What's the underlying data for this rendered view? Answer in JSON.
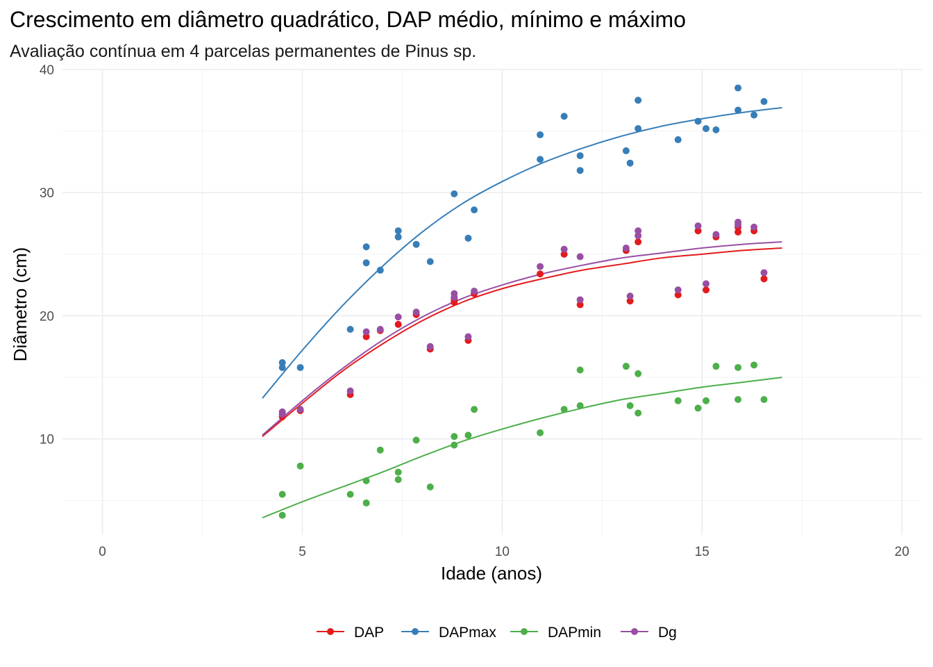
{
  "chart_data": {
    "type": "scatter",
    "title": "Crescimento em diâmetro quadrático, DAP médio, mínimo e máximo",
    "subtitle": "Avaliação contínua em 4 parcelas permanentes de Pinus sp.",
    "xlabel": "Idade (anos)",
    "ylabel": "Diâmetro (cm)",
    "xlim": [
      -1,
      20.5
    ],
    "ylim": [
      2.2,
      40
    ],
    "xticks": [
      0,
      5,
      10,
      15,
      20
    ],
    "yticks": [
      10,
      20,
      30,
      40
    ],
    "grid": true,
    "legend_position": "bottom",
    "trend_lines": "smoothed fit per series",
    "series": [
      {
        "name": "DAP",
        "color": "#E41A1C",
        "points": [
          [
            4.5,
            11.8
          ],
          [
            4.5,
            12.0
          ],
          [
            4.95,
            12.3
          ],
          [
            6.2,
            13.6
          ],
          [
            6.6,
            18.3
          ],
          [
            6.95,
            18.8
          ],
          [
            7.4,
            19.3
          ],
          [
            7.85,
            20.1
          ],
          [
            8.2,
            17.3
          ],
          [
            8.8,
            21.3
          ],
          [
            8.8,
            21.1
          ],
          [
            9.15,
            18.0
          ],
          [
            9.3,
            21.8
          ],
          [
            10.95,
            23.4
          ],
          [
            11.55,
            25.0
          ],
          [
            11.95,
            20.9
          ],
          [
            13.1,
            25.3
          ],
          [
            13.2,
            21.2
          ],
          [
            13.4,
            26.0
          ],
          [
            14.4,
            21.7
          ],
          [
            14.9,
            26.9
          ],
          [
            15.1,
            22.1
          ],
          [
            15.35,
            26.4
          ],
          [
            15.9,
            27.2
          ],
          [
            15.9,
            26.8
          ],
          [
            16.3,
            26.9
          ],
          [
            16.55,
            23.0
          ]
        ],
        "fit": [
          [
            4,
            10.2
          ],
          [
            5,
            12.9
          ],
          [
            6,
            15.5
          ],
          [
            7,
            17.7
          ],
          [
            8,
            19.6
          ],
          [
            9,
            21.1
          ],
          [
            10,
            22.2
          ],
          [
            11,
            23.0
          ],
          [
            12,
            23.7
          ],
          [
            13,
            24.2
          ],
          [
            14,
            24.7
          ],
          [
            15,
            25.0
          ],
          [
            16,
            25.3
          ],
          [
            17,
            25.5
          ]
        ]
      },
      {
        "name": "DAPmax",
        "color": "#377EB8",
        "points": [
          [
            4.5,
            16.2
          ],
          [
            4.5,
            15.8
          ],
          [
            4.95,
            15.8
          ],
          [
            6.2,
            18.9
          ],
          [
            6.6,
            25.6
          ],
          [
            6.6,
            24.3
          ],
          [
            6.95,
            23.7
          ],
          [
            7.4,
            26.9
          ],
          [
            7.4,
            26.4
          ],
          [
            7.85,
            25.8
          ],
          [
            8.2,
            24.4
          ],
          [
            8.8,
            29.9
          ],
          [
            9.15,
            26.3
          ],
          [
            9.3,
            28.6
          ],
          [
            10.95,
            34.7
          ],
          [
            10.95,
            32.7
          ],
          [
            11.55,
            36.2
          ],
          [
            11.95,
            33.0
          ],
          [
            11.95,
            31.8
          ],
          [
            13.1,
            33.4
          ],
          [
            13.2,
            32.4
          ],
          [
            13.4,
            37.5
          ],
          [
            13.4,
            35.2
          ],
          [
            14.4,
            34.3
          ],
          [
            14.9,
            35.8
          ],
          [
            15.1,
            35.2
          ],
          [
            15.35,
            35.1
          ],
          [
            15.9,
            38.5
          ],
          [
            15.9,
            36.7
          ],
          [
            16.3,
            36.3
          ],
          [
            16.55,
            37.4
          ]
        ],
        "fit": [
          [
            4,
            13.3
          ],
          [
            5,
            17.2
          ],
          [
            6,
            20.8
          ],
          [
            7,
            24.0
          ],
          [
            8,
            26.8
          ],
          [
            9,
            29.1
          ],
          [
            10,
            30.9
          ],
          [
            11,
            32.4
          ],
          [
            12,
            33.6
          ],
          [
            13,
            34.6
          ],
          [
            14,
            35.4
          ],
          [
            15,
            36.0
          ],
          [
            16,
            36.5
          ],
          [
            17,
            36.9
          ]
        ]
      },
      {
        "name": "DAPmin",
        "color": "#4DAF4A",
        "points": [
          [
            4.5,
            5.5
          ],
          [
            4.5,
            3.8
          ],
          [
            4.95,
            7.8
          ],
          [
            6.2,
            5.5
          ],
          [
            6.6,
            6.6
          ],
          [
            6.6,
            4.8
          ],
          [
            6.95,
            9.1
          ],
          [
            7.4,
            7.3
          ],
          [
            7.4,
            6.7
          ],
          [
            7.85,
            9.9
          ],
          [
            8.2,
            6.1
          ],
          [
            8.8,
            10.2
          ],
          [
            8.8,
            9.5
          ],
          [
            9.15,
            10.3
          ],
          [
            9.3,
            12.4
          ],
          [
            10.95,
            10.5
          ],
          [
            11.55,
            12.4
          ],
          [
            11.95,
            15.6
          ],
          [
            11.95,
            12.7
          ],
          [
            13.1,
            15.9
          ],
          [
            13.2,
            12.7
          ],
          [
            13.4,
            15.3
          ],
          [
            13.4,
            12.1
          ],
          [
            14.4,
            13.1
          ],
          [
            14.9,
            12.5
          ],
          [
            15.1,
            13.1
          ],
          [
            15.35,
            15.9
          ],
          [
            15.9,
            15.8
          ],
          [
            15.9,
            13.2
          ],
          [
            16.3,
            16.0
          ],
          [
            16.55,
            13.2
          ]
        ],
        "fit": [
          [
            4,
            3.6
          ],
          [
            5,
            4.9
          ],
          [
            6,
            6.1
          ],
          [
            7,
            7.3
          ],
          [
            8,
            8.6
          ],
          [
            9,
            9.8
          ],
          [
            10,
            10.8
          ],
          [
            11,
            11.7
          ],
          [
            12,
            12.5
          ],
          [
            13,
            13.2
          ],
          [
            14,
            13.7
          ],
          [
            15,
            14.2
          ],
          [
            16,
            14.6
          ],
          [
            17,
            15.0
          ]
        ]
      },
      {
        "name": "Dg",
        "color": "#984EA3",
        "points": [
          [
            4.5,
            12.2
          ],
          [
            4.5,
            12.0
          ],
          [
            4.95,
            12.4
          ],
          [
            6.2,
            13.9
          ],
          [
            6.6,
            18.7
          ],
          [
            6.95,
            18.9
          ],
          [
            7.4,
            19.9
          ],
          [
            7.85,
            20.3
          ],
          [
            8.2,
            17.5
          ],
          [
            8.8,
            21.8
          ],
          [
            8.8,
            21.5
          ],
          [
            9.15,
            18.3
          ],
          [
            9.3,
            22.0
          ],
          [
            10.95,
            24.0
          ],
          [
            11.55,
            25.4
          ],
          [
            11.95,
            21.3
          ],
          [
            11.95,
            24.8
          ],
          [
            13.1,
            25.5
          ],
          [
            13.2,
            21.6
          ],
          [
            13.4,
            26.9
          ],
          [
            13.4,
            26.5
          ],
          [
            14.4,
            22.1
          ],
          [
            14.9,
            27.3
          ],
          [
            15.1,
            22.6
          ],
          [
            15.35,
            26.6
          ],
          [
            15.9,
            27.6
          ],
          [
            15.9,
            27.4
          ],
          [
            16.3,
            27.2
          ],
          [
            16.55,
            23.5
          ]
        ],
        "fit": [
          [
            4,
            10.3
          ],
          [
            5,
            13.1
          ],
          [
            6,
            15.7
          ],
          [
            7,
            18.0
          ],
          [
            8,
            19.9
          ],
          [
            9,
            21.4
          ],
          [
            10,
            22.5
          ],
          [
            11,
            23.4
          ],
          [
            12,
            24.1
          ],
          [
            13,
            24.7
          ],
          [
            14,
            25.1
          ],
          [
            15,
            25.5
          ],
          [
            16,
            25.8
          ],
          [
            17,
            26.0
          ]
        ]
      }
    ]
  }
}
